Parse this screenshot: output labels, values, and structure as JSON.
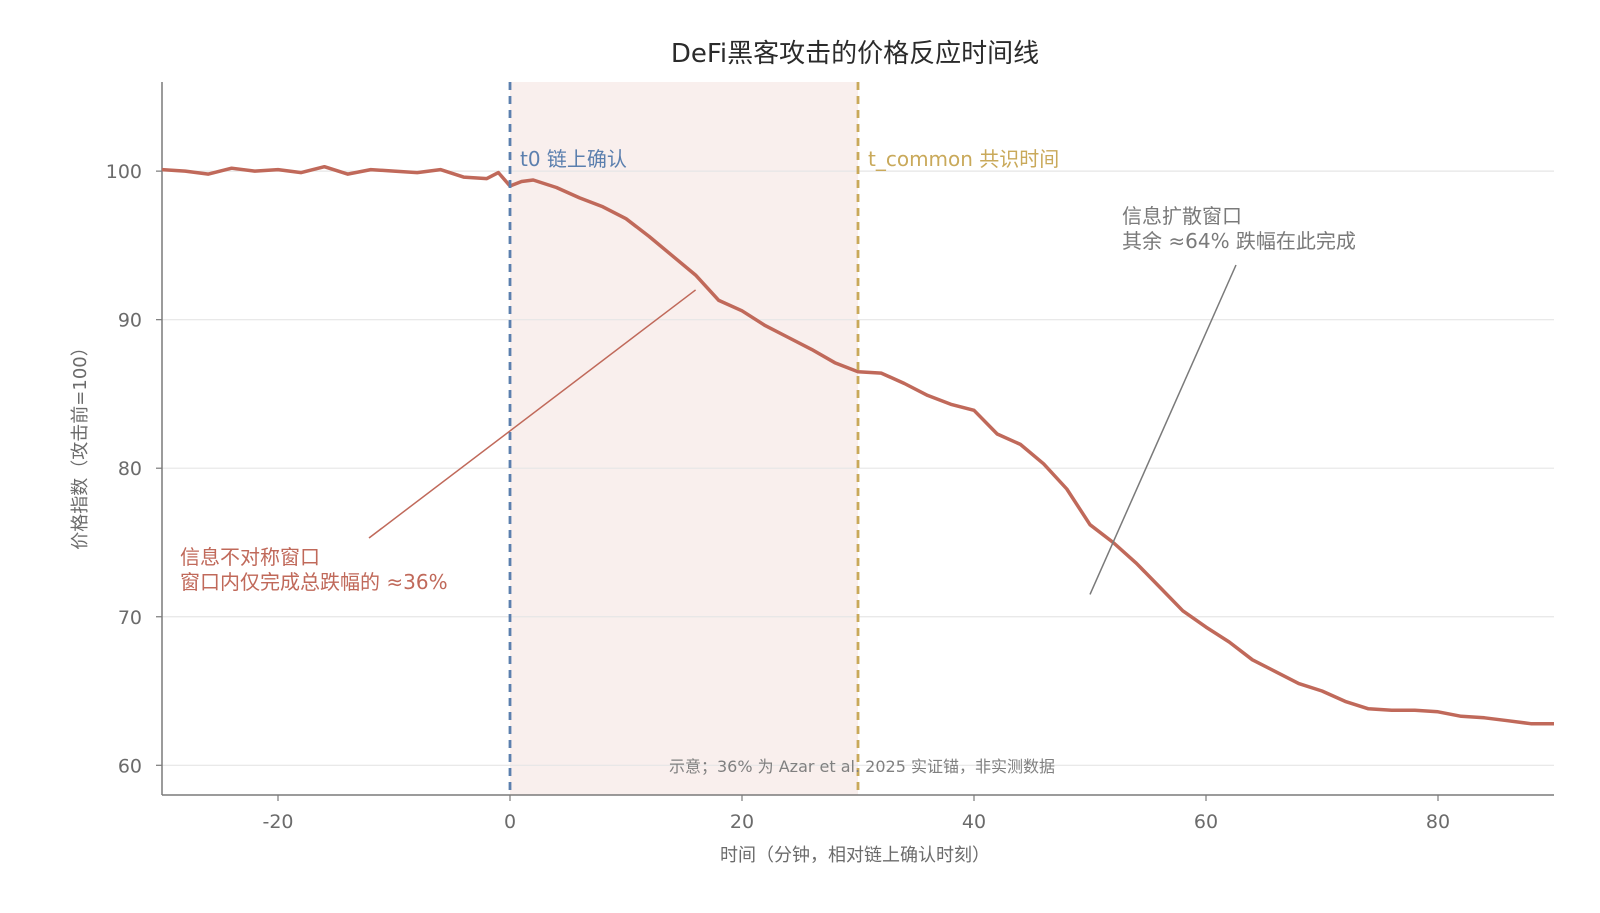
{
  "chart_data": {
    "type": "line",
    "title": "DeFi黑客攻击的价格反应时间线",
    "xlabel": "时间（分钟，相对链上确认时刻）",
    "ylabel": "价格指数（攻击前=100）",
    "xlim": [
      -30,
      90
    ],
    "ylim": [
      58,
      106
    ],
    "xticks": [
      -20,
      0,
      20,
      40,
      60,
      80
    ],
    "yticks": [
      60,
      70,
      80,
      90,
      100
    ],
    "grid": "horizontal",
    "series": [
      {
        "color": "#c0695a",
        "x": [
          -30,
          -28,
          -26,
          -24,
          -22,
          -20,
          -18,
          -16,
          -14,
          -12,
          -10,
          -8,
          -6,
          -4,
          -2,
          -1,
          0,
          1,
          2,
          4,
          6,
          8,
          10,
          12,
          14,
          16,
          18,
          20,
          22,
          24,
          26,
          28,
          30,
          32,
          34,
          36,
          38,
          40,
          42,
          44,
          46,
          48,
          50,
          52,
          54,
          56,
          58,
          60,
          62,
          64,
          66,
          68,
          70,
          72,
          74,
          76,
          78,
          80,
          82,
          84,
          86,
          88,
          90
        ],
        "values": [
          100.1,
          100.0,
          99.8,
          100.2,
          100.0,
          100.1,
          99.9,
          100.3,
          99.8,
          100.1,
          100.0,
          99.9,
          100.1,
          99.6,
          99.5,
          99.9,
          99.0,
          99.3,
          99.4,
          98.9,
          98.2,
          97.6,
          96.8,
          95.6,
          94.3,
          93.0,
          91.3,
          90.6,
          89.6,
          88.8,
          88.0,
          87.1,
          86.5,
          86.4,
          85.7,
          84.9,
          84.3,
          83.9,
          82.3,
          81.6,
          80.3,
          78.6,
          76.2,
          75.0,
          73.6,
          72.0,
          70.4,
          69.3,
          68.3,
          67.1,
          66.3,
          65.5,
          65.0,
          64.3,
          63.8,
          63.7,
          63.7,
          63.6,
          63.3,
          63.2,
          63.0,
          62.8,
          62.8
        ]
      }
    ],
    "vlines": [
      {
        "x": 0,
        "label": "t0 链上确认",
        "color": "#5b7fae"
      },
      {
        "x": 30,
        "label": "t_common 共识时间",
        "color": "#c9a95a"
      }
    ],
    "shaded_region": {
      "x": [
        0,
        30
      ],
      "color": "#f9efed"
    },
    "annotations": [
      {
        "lines": [
          "信息不对称窗口",
          "窗口内仅完成总跌幅的 ≈36%"
        ],
        "color": "#c0695a",
        "arrow_to": [
          16,
          92
        ]
      },
      {
        "lines": [
          "信息扩散窗口",
          "其余 ≈64% 跌幅在此完成"
        ],
        "color": "#7a7a7a",
        "arrow_to": [
          50,
          71.5
        ]
      }
    ],
    "note": "示意；36% 为 Azar et al. 2025 实证锚，非实测数据"
  }
}
